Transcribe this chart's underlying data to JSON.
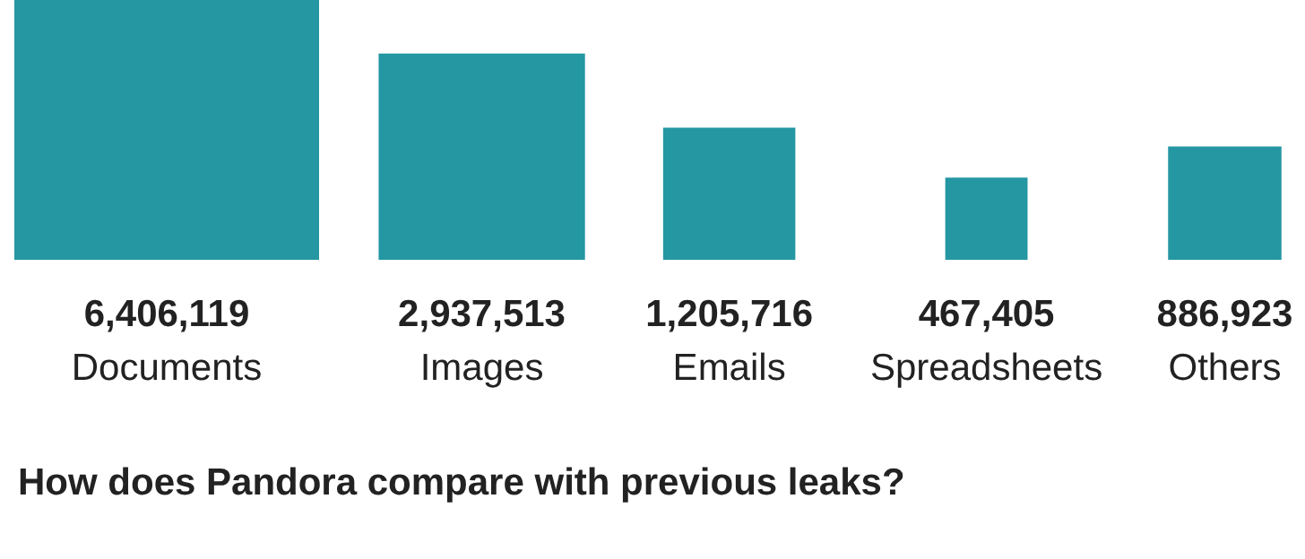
{
  "chart_data": {
    "type": "other",
    "categories": [
      "Documents",
      "Images",
      "Emails",
      "Spreadsheets",
      "Others"
    ],
    "values": [
      6406119,
      2937513,
      1205716,
      467405,
      886923
    ],
    "value_labels": [
      "6,406,119",
      "2,937,513",
      "1,205,716",
      "467,405",
      "886,923"
    ],
    "color": "#2497a3",
    "annotations": [
      "How does Pandora compare with previous leaks?"
    ]
  }
}
